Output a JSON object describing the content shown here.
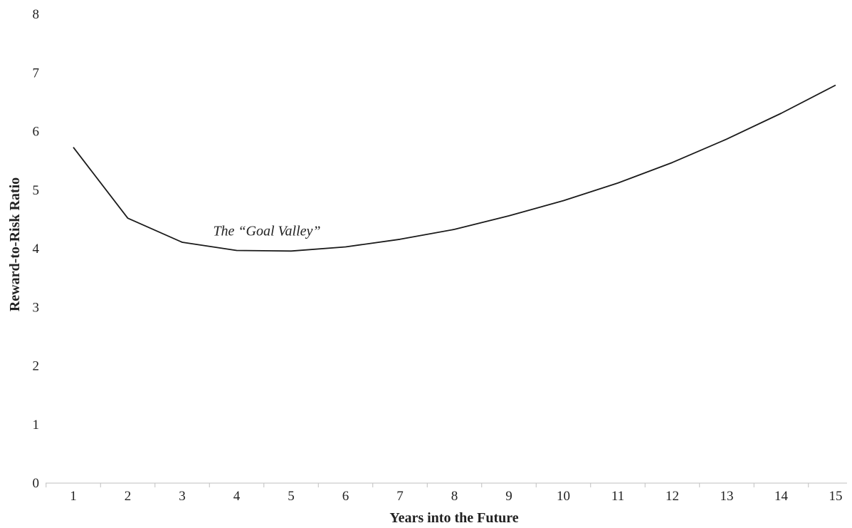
{
  "chart_data": {
    "type": "line",
    "title": "",
    "xlabel": "Years into the Future",
    "ylabel": "Reward-to-Risk Ratio",
    "x": [
      1,
      2,
      3,
      4,
      5,
      6,
      7,
      8,
      9,
      10,
      11,
      12,
      13,
      14,
      15
    ],
    "series": [
      {
        "values": [
          5.73,
          4.52,
          4.11,
          3.97,
          3.96,
          4.03,
          4.16,
          4.33,
          4.56,
          4.82,
          5.12,
          5.47,
          5.87,
          6.31,
          6.79
        ]
      }
    ],
    "ylim": [
      0,
      8
    ],
    "yticks": [
      0,
      1,
      2,
      3,
      4,
      5,
      6,
      7,
      8
    ],
    "grid": false,
    "legend": "none",
    "annotations": [
      {
        "text": "The “Goal Valley”",
        "x": 5.0,
        "y": 4.3
      }
    ],
    "colors": {
      "line": "#1a1a1a",
      "axis": "#bfbfbf"
    }
  }
}
